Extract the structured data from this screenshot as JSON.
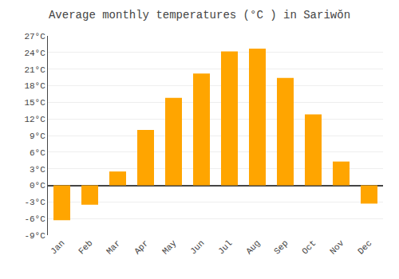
{
  "chart_data": {
    "type": "bar",
    "title": "Average monthly temperatures (°C ) in Sariwŏn",
    "categories": [
      "Jan",
      "Feb",
      "Mar",
      "Apr",
      "May",
      "Jun",
      "Jul",
      "Aug",
      "Sep",
      "Oct",
      "Nov",
      "Dec"
    ],
    "values": [
      -6.3,
      -3.5,
      2.5,
      10.0,
      15.8,
      20.2,
      24.2,
      24.7,
      19.4,
      12.8,
      4.3,
      -3.3
    ],
    "color": "#FFA500",
    "ylim": [
      -9,
      27
    ],
    "yticks": [
      {
        "value": -9,
        "label": "-9°C"
      },
      {
        "value": -6,
        "label": "-6°C"
      },
      {
        "value": -3,
        "label": "-3°C"
      },
      {
        "value": 0,
        "label": "0°C"
      },
      {
        "value": 3,
        "label": "3°C"
      },
      {
        "value": 6,
        "label": "6°C"
      },
      {
        "value": 9,
        "label": "9°C"
      },
      {
        "value": 12,
        "label": "12°C"
      },
      {
        "value": 15,
        "label": "15°C"
      },
      {
        "value": 18,
        "label": "18°C"
      },
      {
        "value": 21,
        "label": "21°C"
      },
      {
        "value": 24,
        "label": "24°C"
      },
      {
        "value": 27,
        "label": "27°C"
      }
    ],
    "grid": true
  }
}
